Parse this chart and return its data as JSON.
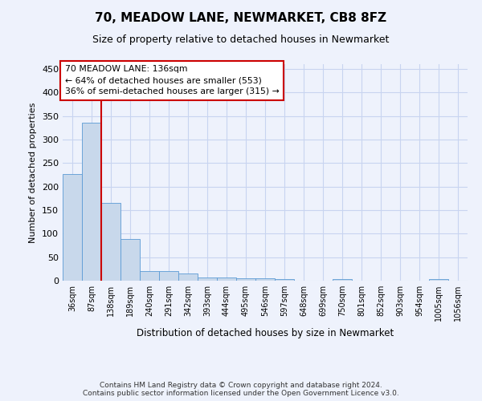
{
  "title": "70, MEADOW LANE, NEWMARKET, CB8 8FZ",
  "subtitle": "Size of property relative to detached houses in Newmarket",
  "xlabel": "Distribution of detached houses by size in Newmarket",
  "ylabel": "Number of detached properties",
  "categories": [
    "36sqm",
    "87sqm",
    "138sqm",
    "189sqm",
    "240sqm",
    "291sqm",
    "342sqm",
    "393sqm",
    "444sqm",
    "495sqm",
    "546sqm",
    "597sqm",
    "648sqm",
    "699sqm",
    "750sqm",
    "801sqm",
    "852sqm",
    "903sqm",
    "954sqm",
    "1005sqm",
    "1056sqm"
  ],
  "values": [
    226,
    336,
    165,
    88,
    21,
    21,
    15,
    7,
    7,
    5,
    5,
    4,
    0,
    0,
    4,
    0,
    0,
    0,
    0,
    4,
    0
  ],
  "bar_color": "#c8d8eb",
  "bar_edge_color": "#5b9bd5",
  "grid_color": "#c8d4f0",
  "background_color": "#eef2fc",
  "vline_x_index": 2,
  "vline_color": "#cc0000",
  "annotation_text": "70 MEADOW LANE: 136sqm\n← 64% of detached houses are smaller (553)\n36% of semi-detached houses are larger (315) →",
  "annotation_box_color": "#ffffff",
  "annotation_box_edge": "#cc0000",
  "footer": "Contains HM Land Registry data © Crown copyright and database right 2024.\nContains public sector information licensed under the Open Government Licence v3.0.",
  "ylim": [
    0,
    460
  ],
  "yticks": [
    0,
    50,
    100,
    150,
    200,
    250,
    300,
    350,
    400,
    450
  ]
}
